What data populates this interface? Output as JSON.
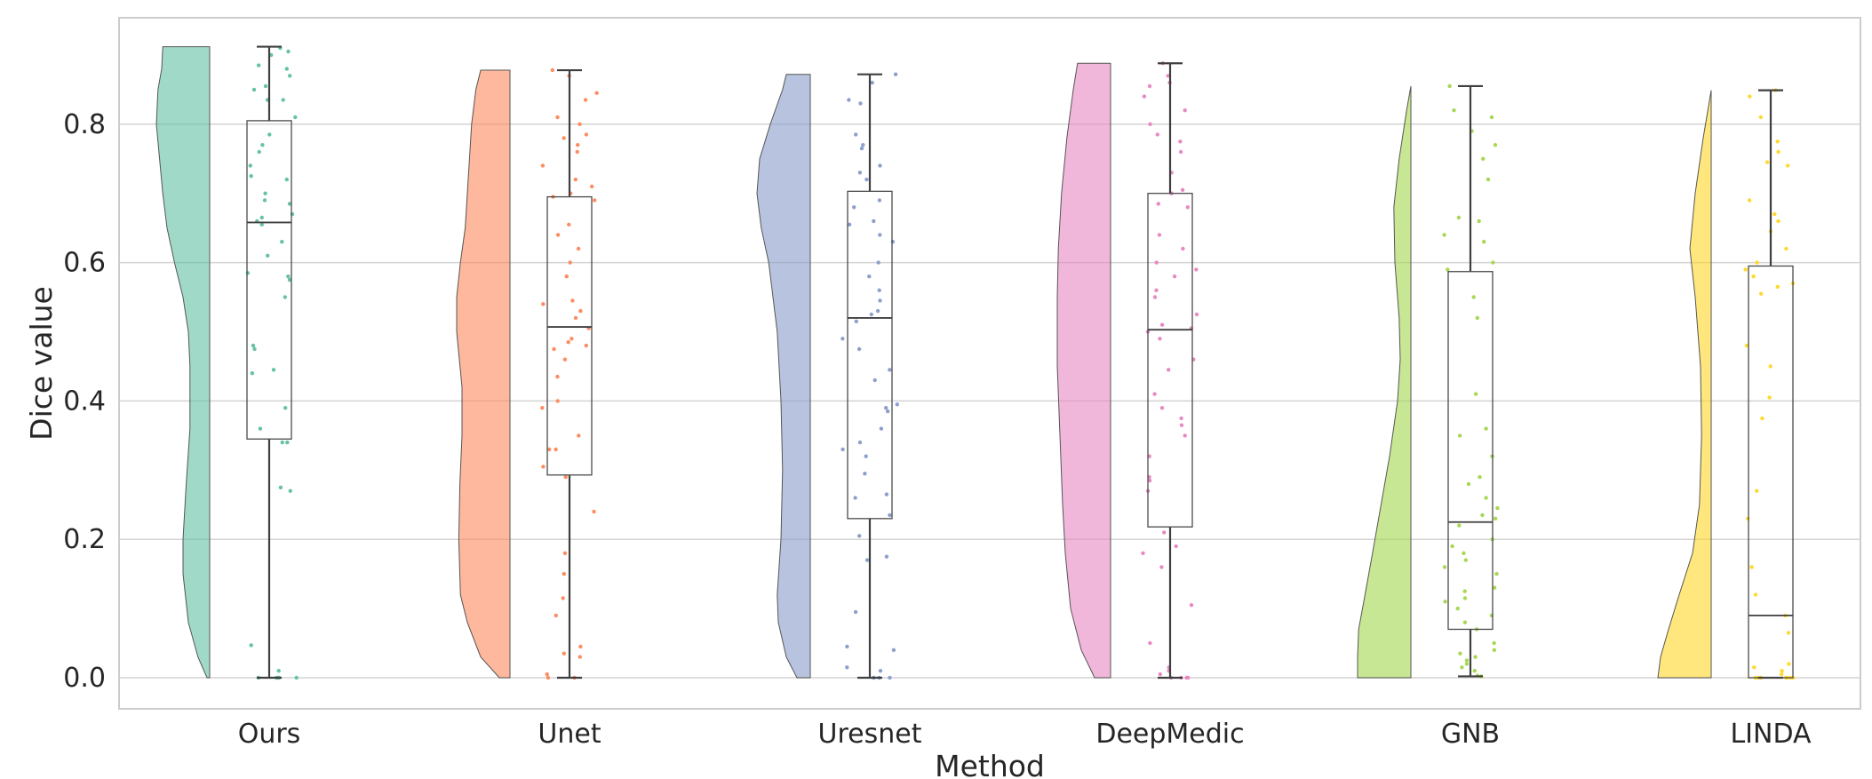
{
  "chart_data": {
    "type": "raincloud",
    "title": "",
    "xlabel": "Method",
    "ylabel": "Dice value",
    "ylim": [
      -0.045,
      0.955
    ],
    "yticks": [
      0.0,
      0.2,
      0.4,
      0.6,
      0.8
    ],
    "ytick_labels": [
      "0.0",
      "0.2",
      "0.4",
      "0.6",
      "0.8"
    ],
    "grid": true,
    "categories": [
      "Ours",
      "Unet",
      "Uresnet",
      "DeepMedic",
      "GNB",
      "LINDA"
    ],
    "colors": [
      "#66c2a5",
      "#fc8d62",
      "#8da0cb",
      "#e78ac3",
      "#a6d854",
      "#ffd92f"
    ],
    "series": [
      {
        "box": {
          "min": 0.0,
          "q1": 0.345,
          "median": 0.658,
          "q3": 0.805,
          "max": 0.912
        },
        "density": [
          [
            0.0,
            0.05
          ],
          [
            0.03,
            0.22
          ],
          [
            0.08,
            0.4
          ],
          [
            0.15,
            0.5
          ],
          [
            0.2,
            0.5
          ],
          [
            0.28,
            0.44
          ],
          [
            0.36,
            0.37
          ],
          [
            0.45,
            0.37
          ],
          [
            0.5,
            0.4
          ],
          [
            0.55,
            0.5
          ],
          [
            0.6,
            0.66
          ],
          [
            0.65,
            0.8
          ],
          [
            0.7,
            0.88
          ],
          [
            0.75,
            0.94
          ],
          [
            0.8,
            1.0
          ],
          [
            0.85,
            0.97
          ],
          [
            0.88,
            0.9
          ],
          [
            0.912,
            0.88
          ]
        ],
        "points": [
          0,
          0,
          0,
          0,
          0,
          0.01,
          0.047,
          0.27,
          0.275,
          0.34,
          0.34,
          0.36,
          0.39,
          0.44,
          0.445,
          0.475,
          0.48,
          0.55,
          0.575,
          0.58,
          0.585,
          0.61,
          0.63,
          0.655,
          0.66,
          0.665,
          0.67,
          0.685,
          0.69,
          0.7,
          0.72,
          0.725,
          0.74,
          0.76,
          0.77,
          0.785,
          0.81,
          0.835,
          0.835,
          0.85,
          0.855,
          0.87,
          0.88,
          0.885,
          0.9,
          0.905,
          0.91
        ]
      },
      {
        "box": {
          "min": 0.0,
          "q1": 0.293,
          "median": 0.507,
          "q3": 0.695,
          "max": 0.878
        },
        "density": [
          [
            0.0,
            0.2
          ],
          [
            0.03,
            0.55
          ],
          [
            0.08,
            0.8
          ],
          [
            0.12,
            0.93
          ],
          [
            0.2,
            0.96
          ],
          [
            0.28,
            0.94
          ],
          [
            0.35,
            0.9
          ],
          [
            0.42,
            0.9
          ],
          [
            0.5,
            1.0
          ],
          [
            0.55,
            1.0
          ],
          [
            0.6,
            0.93
          ],
          [
            0.65,
            0.84
          ],
          [
            0.7,
            0.8
          ],
          [
            0.75,
            0.76
          ],
          [
            0.8,
            0.72
          ],
          [
            0.85,
            0.64
          ],
          [
            0.878,
            0.55
          ]
        ],
        "points": [
          0,
          0,
          0.005,
          0.03,
          0.035,
          0.045,
          0.09,
          0.115,
          0.15,
          0.18,
          0.24,
          0.29,
          0.305,
          0.33,
          0.33,
          0.35,
          0.39,
          0.4,
          0.435,
          0.46,
          0.475,
          0.48,
          0.485,
          0.49,
          0.505,
          0.52,
          0.53,
          0.54,
          0.545,
          0.58,
          0.6,
          0.62,
          0.64,
          0.655,
          0.69,
          0.695,
          0.7,
          0.71,
          0.72,
          0.74,
          0.76,
          0.77,
          0.78,
          0.785,
          0.8,
          0.81,
          0.835,
          0.845,
          0.87,
          0.878
        ]
      },
      {
        "box": {
          "min": 0.0,
          "q1": 0.23,
          "median": 0.52,
          "q3": 0.703,
          "max": 0.872
        },
        "density": [
          [
            0.0,
            0.25
          ],
          [
            0.03,
            0.45
          ],
          [
            0.08,
            0.6
          ],
          [
            0.12,
            0.62
          ],
          [
            0.2,
            0.55
          ],
          [
            0.3,
            0.52
          ],
          [
            0.4,
            0.55
          ],
          [
            0.5,
            0.62
          ],
          [
            0.6,
            0.78
          ],
          [
            0.65,
            0.92
          ],
          [
            0.7,
            1.0
          ],
          [
            0.75,
            0.95
          ],
          [
            0.8,
            0.75
          ],
          [
            0.85,
            0.52
          ],
          [
            0.872,
            0.45
          ]
        ],
        "points": [
          0,
          0,
          0,
          0,
          0.01,
          0.015,
          0.04,
          0.045,
          0.095,
          0.17,
          0.175,
          0.205,
          0.235,
          0.26,
          0.265,
          0.295,
          0.32,
          0.33,
          0.34,
          0.36,
          0.385,
          0.39,
          0.395,
          0.43,
          0.445,
          0.475,
          0.49,
          0.515,
          0.525,
          0.53,
          0.545,
          0.56,
          0.58,
          0.6,
          0.63,
          0.64,
          0.655,
          0.66,
          0.68,
          0.69,
          0.72,
          0.73,
          0.74,
          0.765,
          0.77,
          0.785,
          0.83,
          0.835,
          0.86,
          0.872
        ]
      },
      {
        "box": {
          "min": 0.0,
          "q1": 0.218,
          "median": 0.503,
          "q3": 0.7,
          "max": 0.888
        },
        "density": [
          [
            0.0,
            0.3
          ],
          [
            0.04,
            0.55
          ],
          [
            0.1,
            0.75
          ],
          [
            0.18,
            0.85
          ],
          [
            0.25,
            0.9
          ],
          [
            0.35,
            0.95
          ],
          [
            0.45,
            1.0
          ],
          [
            0.55,
            1.0
          ],
          [
            0.62,
            0.98
          ],
          [
            0.7,
            0.92
          ],
          [
            0.78,
            0.82
          ],
          [
            0.85,
            0.7
          ],
          [
            0.888,
            0.62
          ]
        ],
        "points": [
          0,
          0,
          0,
          0,
          0.005,
          0.01,
          0.015,
          0.05,
          0.105,
          0.16,
          0.18,
          0.19,
          0.21,
          0.27,
          0.285,
          0.29,
          0.32,
          0.35,
          0.365,
          0.375,
          0.39,
          0.41,
          0.445,
          0.46,
          0.49,
          0.5,
          0.505,
          0.51,
          0.525,
          0.55,
          0.56,
          0.58,
          0.59,
          0.6,
          0.62,
          0.64,
          0.68,
          0.685,
          0.7,
          0.705,
          0.73,
          0.76,
          0.775,
          0.785,
          0.8,
          0.82,
          0.84,
          0.855,
          0.86,
          0.87,
          0.888
        ]
      },
      {
        "box": {
          "min": 0.002,
          "q1": 0.07,
          "median": 0.225,
          "q3": 0.587,
          "max": 0.855
        },
        "density": [
          [
            0.0,
            1.0
          ],
          [
            0.03,
            1.0
          ],
          [
            0.07,
            0.98
          ],
          [
            0.12,
            0.86
          ],
          [
            0.18,
            0.72
          ],
          [
            0.25,
            0.56
          ],
          [
            0.32,
            0.4
          ],
          [
            0.4,
            0.25
          ],
          [
            0.46,
            0.2
          ],
          [
            0.52,
            0.22
          ],
          [
            0.6,
            0.3
          ],
          [
            0.68,
            0.32
          ],
          [
            0.75,
            0.22
          ],
          [
            0.82,
            0.08
          ],
          [
            0.855,
            0.0
          ]
        ],
        "points": [
          0.002,
          0.003,
          0.01,
          0.015,
          0.02,
          0.025,
          0.03,
          0.035,
          0.04,
          0.05,
          0.07,
          0.08,
          0.09,
          0.1,
          0.11,
          0.115,
          0.125,
          0.13,
          0.15,
          0.16,
          0.17,
          0.18,
          0.19,
          0.2,
          0.22,
          0.23,
          0.235,
          0.245,
          0.26,
          0.28,
          0.29,
          0.32,
          0.35,
          0.36,
          0.41,
          0.52,
          0.55,
          0.59,
          0.6,
          0.63,
          0.64,
          0.66,
          0.665,
          0.72,
          0.75,
          0.77,
          0.79,
          0.81,
          0.82,
          0.855
        ]
      },
      {
        "box": {
          "min": 0.0,
          "q1": 0.0,
          "median": 0.09,
          "q3": 0.595,
          "max": 0.849
        },
        "density": [
          [
            0.0,
            1.0
          ],
          [
            0.03,
            0.95
          ],
          [
            0.07,
            0.8
          ],
          [
            0.12,
            0.6
          ],
          [
            0.18,
            0.35
          ],
          [
            0.25,
            0.22
          ],
          [
            0.35,
            0.18
          ],
          [
            0.45,
            0.2
          ],
          [
            0.55,
            0.3
          ],
          [
            0.62,
            0.4
          ],
          [
            0.7,
            0.3
          ],
          [
            0.78,
            0.15
          ],
          [
            0.849,
            0.0
          ]
        ],
        "points": [
          0,
          0,
          0,
          0,
          0,
          0,
          0,
          0.005,
          0.01,
          0.015,
          0.02,
          0.065,
          0.09,
          0.12,
          0.16,
          0.23,
          0.27,
          0.375,
          0.405,
          0.45,
          0.48,
          0.555,
          0.565,
          0.57,
          0.58,
          0.59,
          0.6,
          0.62,
          0.645,
          0.66,
          0.67,
          0.69,
          0.74,
          0.745,
          0.76,
          0.775,
          0.81,
          0.84,
          0.849
        ]
      }
    ]
  }
}
